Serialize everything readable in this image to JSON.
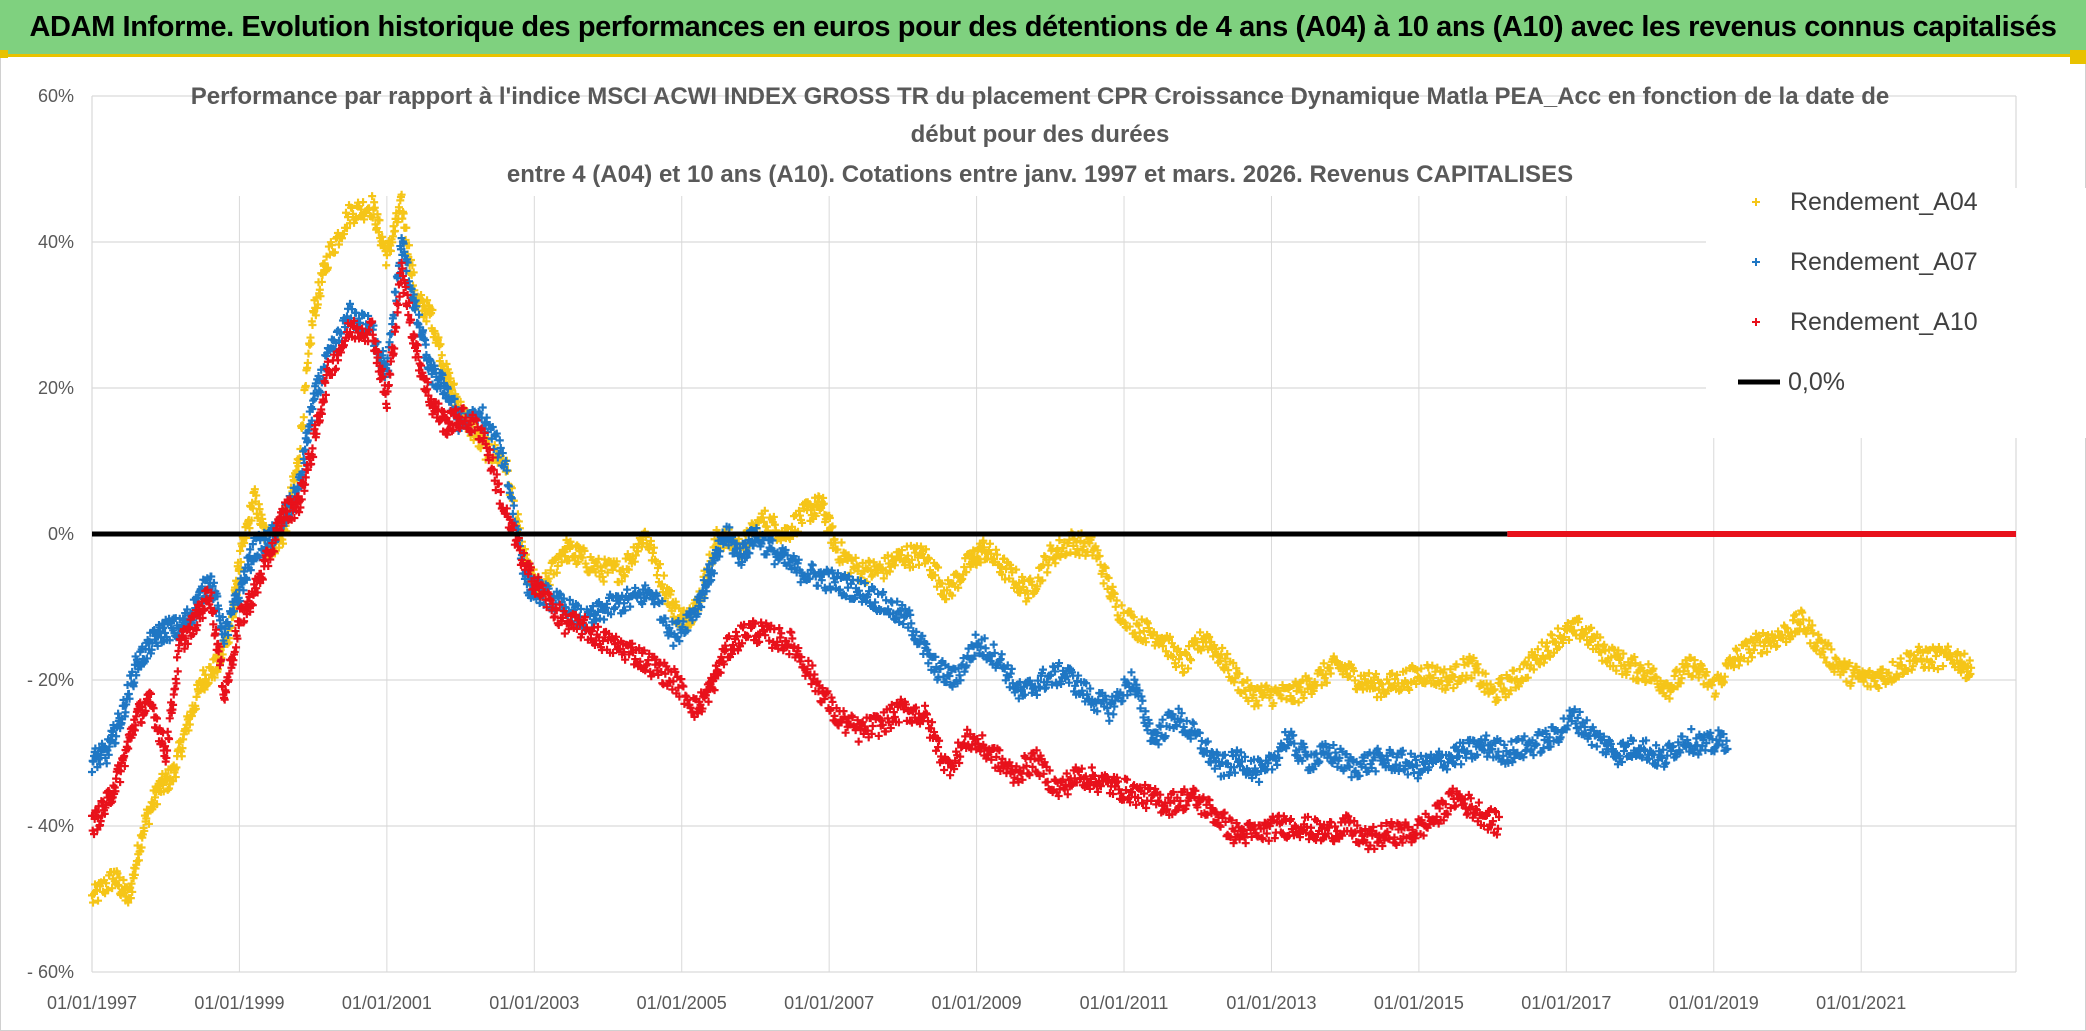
{
  "header": {
    "banner": "ADAM Informe. Evolution historique des performances en euros pour des détentions de 4 ans (A04) à 10 ans (A10) avec les revenus connus capitalisés"
  },
  "chart_data": {
    "type": "scatter",
    "title_lines": [
      "Performance  par rapport à l'indice MSCI ACWI INDEX GROSS TR  du placement CPR Croissance Dynamique Matla PEA_Acc en fonction de la date de",
      "début pour des durées",
      "entre 4 (A04) et 10 ans (A10). Cotations entre janv. 1997 et mars. 2026. Revenus CAPITALISES"
    ],
    "xlabel": "",
    "ylabel": "",
    "x_range": [
      1997.0,
      2023.1
    ],
    "y_range": [
      -60,
      60
    ],
    "x_ticks": [
      "01/01/1997",
      "01/01/1999",
      "01/01/2001",
      "01/01/2003",
      "01/01/2005",
      "01/01/2007",
      "01/01/2009",
      "01/01/2011",
      "01/01/2013",
      "01/01/2015",
      "01/01/2017",
      "01/01/2019",
      "01/01/2021"
    ],
    "x_tick_values": [
      1997,
      1999,
      2001,
      2003,
      2005,
      2007,
      2009,
      2011,
      2013,
      2015,
      2017,
      2019,
      2021
    ],
    "y_ticks": [
      "60%",
      "40%",
      "20%",
      "0%",
      "- 20%",
      "- 40%",
      "- 60%"
    ],
    "y_tick_values": [
      60,
      40,
      20,
      0,
      -20,
      -40,
      -60
    ],
    "grid": "horizontal",
    "legend_position": "top-right",
    "series": [
      {
        "name": "Rendement_A04",
        "color": "#f5c518",
        "marker": "plus",
        "points": [
          [
            1997.0,
            -50
          ],
          [
            1997.3,
            -47
          ],
          [
            1997.5,
            -50
          ],
          [
            1997.7,
            -40
          ],
          [
            1997.9,
            -35
          ],
          [
            1998.1,
            -33
          ],
          [
            1998.3,
            -26
          ],
          [
            1998.5,
            -20
          ],
          [
            1998.7,
            -18
          ],
          [
            1998.9,
            -12
          ],
          [
            1999.0,
            -4
          ],
          [
            1999.2,
            5
          ],
          [
            1999.4,
            -2
          ],
          [
            1999.6,
            0
          ],
          [
            1999.8,
            10
          ],
          [
            2000.0,
            30
          ],
          [
            2000.2,
            38
          ],
          [
            2000.5,
            44
          ],
          [
            2000.8,
            45
          ],
          [
            2001.0,
            38
          ],
          [
            2001.2,
            45
          ],
          [
            2001.4,
            32
          ],
          [
            2001.6,
            30
          ],
          [
            2001.8,
            22
          ],
          [
            2002.0,
            17
          ],
          [
            2002.3,
            12
          ],
          [
            2002.6,
            10
          ],
          [
            2002.9,
            -5
          ],
          [
            2003.1,
            -8
          ],
          [
            2003.4,
            -2
          ],
          [
            2003.6,
            -3
          ],
          [
            2003.9,
            -5
          ],
          [
            2004.2,
            -5
          ],
          [
            2004.5,
            0
          ],
          [
            2004.8,
            -8
          ],
          [
            2005.0,
            -12
          ],
          [
            2005.2,
            -10
          ],
          [
            2005.5,
            0
          ],
          [
            2005.8,
            -2
          ],
          [
            2006.1,
            2
          ],
          [
            2006.4,
            0
          ],
          [
            2006.7,
            3
          ],
          [
            2006.9,
            4
          ],
          [
            2007.1,
            -2
          ],
          [
            2007.4,
            -5
          ],
          [
            2007.7,
            -5
          ],
          [
            2008.0,
            -3
          ],
          [
            2008.3,
            -3
          ],
          [
            2008.6,
            -8
          ],
          [
            2008.9,
            -4
          ],
          [
            2009.1,
            -2
          ],
          [
            2009.4,
            -5
          ],
          [
            2009.7,
            -8
          ],
          [
            2010.0,
            -3
          ],
          [
            2010.3,
            -1
          ],
          [
            2010.6,
            -2
          ],
          [
            2010.9,
            -10
          ],
          [
            2011.2,
            -13
          ],
          [
            2011.5,
            -14
          ],
          [
            2011.8,
            -18
          ],
          [
            2012.1,
            -14
          ],
          [
            2012.4,
            -18
          ],
          [
            2012.7,
            -22
          ],
          [
            2013.0,
            -22
          ],
          [
            2013.3,
            -22
          ],
          [
            2013.6,
            -20
          ],
          [
            2013.9,
            -18
          ],
          [
            2014.2,
            -20
          ],
          [
            2014.5,
            -21
          ],
          [
            2014.8,
            -20
          ],
          [
            2015.1,
            -19
          ],
          [
            2015.4,
            -20
          ],
          [
            2015.7,
            -18
          ],
          [
            2016.0,
            -22
          ],
          [
            2016.3,
            -20
          ],
          [
            2016.6,
            -17
          ],
          [
            2016.9,
            -14
          ],
          [
            2017.2,
            -13
          ],
          [
            2017.5,
            -16
          ],
          [
            2017.8,
            -18
          ],
          [
            2018.1,
            -19
          ],
          [
            2018.4,
            -21
          ],
          [
            2018.7,
            -18
          ],
          [
            2019.0,
            -21
          ],
          [
            2019.3,
            -17
          ],
          [
            2019.6,
            -15
          ],
          [
            2019.9,
            -14
          ],
          [
            2020.2,
            -12
          ],
          [
            2020.5,
            -16
          ],
          [
            2020.8,
            -19
          ],
          [
            2021.1,
            -20
          ],
          [
            2021.4,
            -19
          ],
          [
            2021.7,
            -17
          ],
          [
            2022.0,
            -17
          ],
          [
            2022.3,
            -17
          ],
          [
            2022.5,
            -19
          ]
        ]
      },
      {
        "name": "Rendement_A07",
        "color": "#1f77c4",
        "marker": "plus",
        "points": [
          [
            1997.0,
            -31
          ],
          [
            1997.2,
            -30
          ],
          [
            1997.4,
            -25
          ],
          [
            1997.6,
            -18
          ],
          [
            1997.8,
            -15
          ],
          [
            1998.0,
            -13
          ],
          [
            1998.2,
            -13
          ],
          [
            1998.4,
            -10
          ],
          [
            1998.6,
            -6
          ],
          [
            1998.8,
            -14
          ],
          [
            1999.0,
            -8
          ],
          [
            1999.2,
            -2
          ],
          [
            1999.4,
            -1
          ],
          [
            1999.6,
            2
          ],
          [
            1999.8,
            6
          ],
          [
            2000.0,
            18
          ],
          [
            2000.2,
            24
          ],
          [
            2000.5,
            30
          ],
          [
            2000.8,
            28
          ],
          [
            2001.0,
            22
          ],
          [
            2001.2,
            40
          ],
          [
            2001.4,
            30
          ],
          [
            2001.6,
            22
          ],
          [
            2001.8,
            20
          ],
          [
            2002.0,
            15
          ],
          [
            2002.3,
            16
          ],
          [
            2002.6,
            10
          ],
          [
            2002.9,
            -7
          ],
          [
            2003.1,
            -8
          ],
          [
            2003.4,
            -10
          ],
          [
            2003.7,
            -12
          ],
          [
            2004.0,
            -10
          ],
          [
            2004.3,
            -9
          ],
          [
            2004.6,
            -8
          ],
          [
            2004.9,
            -14
          ],
          [
            2005.2,
            -10
          ],
          [
            2005.4,
            -5
          ],
          [
            2005.6,
            0
          ],
          [
            2005.8,
            -3
          ],
          [
            2006.0,
            0
          ],
          [
            2006.3,
            -3
          ],
          [
            2006.6,
            -5
          ],
          [
            2006.9,
            -6
          ],
          [
            2007.2,
            -7
          ],
          [
            2007.5,
            -8
          ],
          [
            2007.8,
            -10
          ],
          [
            2008.1,
            -12
          ],
          [
            2008.4,
            -18
          ],
          [
            2008.7,
            -20
          ],
          [
            2009.0,
            -15
          ],
          [
            2009.3,
            -17
          ],
          [
            2009.6,
            -22
          ],
          [
            2009.9,
            -20
          ],
          [
            2010.2,
            -19
          ],
          [
            2010.5,
            -22
          ],
          [
            2010.8,
            -24
          ],
          [
            2011.1,
            -20
          ],
          [
            2011.4,
            -28
          ],
          [
            2011.7,
            -25
          ],
          [
            2012.0,
            -28
          ],
          [
            2012.3,
            -32
          ],
          [
            2012.6,
            -31
          ],
          [
            2012.9,
            -33
          ],
          [
            2013.2,
            -28
          ],
          [
            2013.5,
            -31
          ],
          [
            2013.8,
            -30
          ],
          [
            2014.1,
            -32
          ],
          [
            2014.4,
            -31
          ],
          [
            2014.7,
            -31
          ],
          [
            2015.0,
            -32
          ],
          [
            2015.3,
            -31
          ],
          [
            2015.6,
            -30
          ],
          [
            2015.9,
            -29
          ],
          [
            2016.2,
            -30
          ],
          [
            2016.5,
            -29
          ],
          [
            2016.8,
            -28
          ],
          [
            2017.1,
            -25
          ],
          [
            2017.4,
            -28
          ],
          [
            2017.7,
            -30
          ],
          [
            2018.0,
            -29
          ],
          [
            2018.3,
            -31
          ],
          [
            2018.6,
            -28
          ],
          [
            2018.9,
            -29
          ],
          [
            2019.2,
            -28
          ]
        ]
      },
      {
        "name": "Rendement_A10",
        "color": "#e8111b",
        "marker": "plus",
        "points": [
          [
            1997.0,
            -40
          ],
          [
            1997.2,
            -37
          ],
          [
            1997.4,
            -32
          ],
          [
            1997.6,
            -25
          ],
          [
            1997.8,
            -23
          ],
          [
            1998.0,
            -30
          ],
          [
            1998.2,
            -15
          ],
          [
            1998.4,
            -12
          ],
          [
            1998.6,
            -8
          ],
          [
            1998.8,
            -22
          ],
          [
            1999.0,
            -12
          ],
          [
            1999.2,
            -8
          ],
          [
            1999.4,
            -3
          ],
          [
            1999.6,
            3
          ],
          [
            1999.8,
            4
          ],
          [
            2000.0,
            12
          ],
          [
            2000.2,
            22
          ],
          [
            2000.5,
            28
          ],
          [
            2000.8,
            28
          ],
          [
            2001.0,
            18
          ],
          [
            2001.2,
            36
          ],
          [
            2001.4,
            25
          ],
          [
            2001.6,
            18
          ],
          [
            2001.8,
            15
          ],
          [
            2002.0,
            16
          ],
          [
            2002.3,
            14
          ],
          [
            2002.6,
            3
          ],
          [
            2002.9,
            -5
          ],
          [
            2003.1,
            -8
          ],
          [
            2003.4,
            -12
          ],
          [
            2003.7,
            -13
          ],
          [
            2004.0,
            -15
          ],
          [
            2004.3,
            -16
          ],
          [
            2004.6,
            -18
          ],
          [
            2004.9,
            -20
          ],
          [
            2005.2,
            -24
          ],
          [
            2005.4,
            -21
          ],
          [
            2005.6,
            -16
          ],
          [
            2005.9,
            -13
          ],
          [
            2006.2,
            -14
          ],
          [
            2006.5,
            -15
          ],
          [
            2006.8,
            -20
          ],
          [
            2007.1,
            -25
          ],
          [
            2007.4,
            -27
          ],
          [
            2007.7,
            -26
          ],
          [
            2008.0,
            -24
          ],
          [
            2008.3,
            -25
          ],
          [
            2008.6,
            -32
          ],
          [
            2008.9,
            -28
          ],
          [
            2009.2,
            -30
          ],
          [
            2009.5,
            -33
          ],
          [
            2009.8,
            -31
          ],
          [
            2010.1,
            -35
          ],
          [
            2010.4,
            -33
          ],
          [
            2010.7,
            -34
          ],
          [
            2011.0,
            -35
          ],
          [
            2011.3,
            -36
          ],
          [
            2011.6,
            -37
          ],
          [
            2011.9,
            -36
          ],
          [
            2012.2,
            -38
          ],
          [
            2012.5,
            -41
          ],
          [
            2012.8,
            -41
          ],
          [
            2013.1,
            -40
          ],
          [
            2013.4,
            -40
          ],
          [
            2013.7,
            -41
          ],
          [
            2014.0,
            -40
          ],
          [
            2014.3,
            -42
          ],
          [
            2014.6,
            -41
          ],
          [
            2014.9,
            -41
          ],
          [
            2015.2,
            -39
          ],
          [
            2015.5,
            -36
          ],
          [
            2015.8,
            -38
          ],
          [
            2016.1,
            -40
          ]
        ]
      },
      {
        "name": "0,0%",
        "color": "#000000",
        "marker": "line",
        "value": 0
      }
    ],
    "zero_red_segment": [
      2016.2,
      2023.1
    ]
  }
}
